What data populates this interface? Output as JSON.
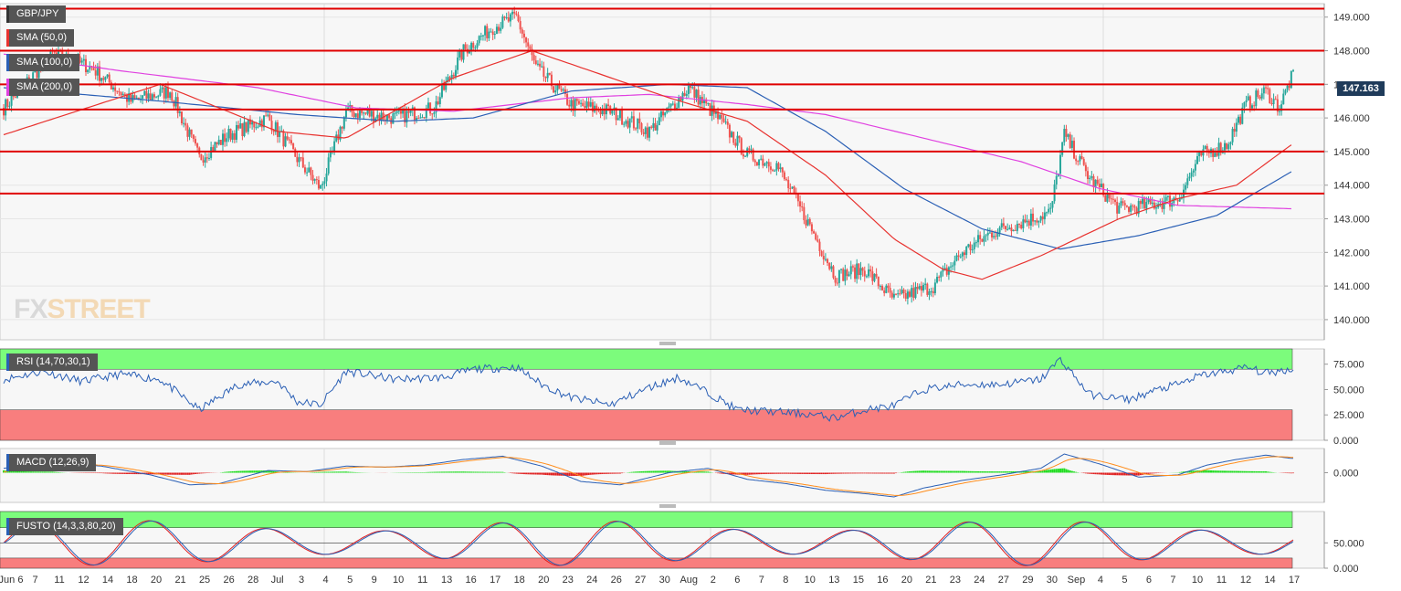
{
  "symbol": "GBP/JPY",
  "indicators": {
    "sma50": "SMA (50,0)",
    "sma100": "SMA (100,0)",
    "sma200": "SMA (200,0)",
    "rsi": "RSI (14,70,30,1)",
    "macd": "MACD (12,26,9)",
    "fusto": "FUSTO (14,3,3,80,20)"
  },
  "watermark": {
    "fx": "FX",
    "street": "STREET"
  },
  "last_price": "147.163",
  "colors": {
    "bull": "#26a69a",
    "bear": "#ef5350",
    "sma50": "#e8322f",
    "sma100": "#2a5fb5",
    "sma200": "#e040e0",
    "level": "#e00000",
    "zone_green": "#7cfc7c",
    "zone_red": "#f87e7e",
    "price_tag": "#1f3b5a"
  },
  "chart_data": [
    {
      "type": "candlestick",
      "title": "GBP/JPY",
      "ylim": [
        139.4,
        149.4
      ],
      "y_ticks": [
        "149.000",
        "148.000",
        "147.000",
        "146.000",
        "145.000",
        "144.000",
        "143.000",
        "142.000",
        "141.000",
        "140.000"
      ],
      "x_ticks": [
        "Jun 6",
        "7",
        "11",
        "12",
        "14",
        "18",
        "20",
        "21",
        "25",
        "26",
        "28",
        "Jul",
        "3",
        "4",
        "5",
        "9",
        "10",
        "11",
        "13",
        "16",
        "17",
        "18",
        "20",
        "23",
        "24",
        "26",
        "27",
        "30",
        "Aug",
        "2",
        "6",
        "7",
        "8",
        "10",
        "13",
        "15",
        "16",
        "20",
        "21",
        "23",
        "24",
        "27",
        "29",
        "30",
        "Sep",
        "4",
        "5",
        "6",
        "7",
        "10",
        "11",
        "12",
        "14",
        "17"
      ],
      "horizontal_levels": [
        149.25,
        148.0,
        147.0,
        146.25,
        145.0,
        143.75
      ],
      "close_waypoints": [
        [
          0,
          146.3
        ],
        [
          25,
          147.9
        ],
        [
          45,
          147.5
        ],
        [
          65,
          146.5
        ],
        [
          85,
          146.8
        ],
        [
          100,
          144.8
        ],
        [
          115,
          145.5
        ],
        [
          135,
          146.0
        ],
        [
          150,
          144.8
        ],
        [
          162,
          143.9
        ],
        [
          175,
          146.2
        ],
        [
          200,
          146.0
        ],
        [
          220,
          146.3
        ],
        [
          235,
          148.0
        ],
        [
          250,
          148.7
        ],
        [
          262,
          149.0
        ],
        [
          272,
          147.5
        ],
        [
          290,
          146.4
        ],
        [
          310,
          146.2
        ],
        [
          330,
          145.6
        ],
        [
          350,
          146.9
        ],
        [
          365,
          146.0
        ],
        [
          380,
          144.9
        ],
        [
          395,
          144.6
        ],
        [
          410,
          143.0
        ],
        [
          425,
          141.3
        ],
        [
          440,
          141.5
        ],
        [
          455,
          140.6
        ],
        [
          475,
          141.0
        ],
        [
          490,
          142.0
        ],
        [
          505,
          142.6
        ],
        [
          520,
          142.9
        ],
        [
          535,
          143.2
        ],
        [
          542,
          145.5
        ],
        [
          555,
          144.2
        ],
        [
          570,
          143.3
        ],
        [
          585,
          143.4
        ],
        [
          600,
          143.6
        ],
        [
          612,
          144.9
        ],
        [
          625,
          145.2
        ],
        [
          635,
          146.4
        ],
        [
          645,
          146.8
        ],
        [
          652,
          146.3
        ],
        [
          658,
          147.2
        ]
      ],
      "sma50_waypoints": [
        [
          0,
          145.5
        ],
        [
          80,
          147.0
        ],
        [
          140,
          145.6
        ],
        [
          175,
          145.4
        ],
        [
          230,
          147.2
        ],
        [
          270,
          148.0
        ],
        [
          300,
          147.4
        ],
        [
          340,
          146.6
        ],
        [
          380,
          145.9
        ],
        [
          420,
          144.3
        ],
        [
          455,
          142.4
        ],
        [
          480,
          141.5
        ],
        [
          500,
          141.2
        ],
        [
          530,
          141.9
        ],
        [
          570,
          143.0
        ],
        [
          600,
          143.6
        ],
        [
          630,
          144.0
        ],
        [
          658,
          145.2
        ]
      ],
      "sma100_waypoints": [
        [
          0,
          146.9
        ],
        [
          80,
          146.5
        ],
        [
          150,
          146.1
        ],
        [
          200,
          145.9
        ],
        [
          240,
          146.0
        ],
        [
          290,
          146.8
        ],
        [
          340,
          147.0
        ],
        [
          380,
          146.9
        ],
        [
          420,
          145.6
        ],
        [
          460,
          143.9
        ],
        [
          500,
          142.7
        ],
        [
          540,
          142.1
        ],
        [
          580,
          142.5
        ],
        [
          620,
          143.1
        ],
        [
          658,
          144.4
        ]
      ],
      "sma200_waypoints": [
        [
          0,
          147.9
        ],
        [
          60,
          147.4
        ],
        [
          130,
          146.9
        ],
        [
          180,
          146.3
        ],
        [
          230,
          146.2
        ],
        [
          290,
          146.6
        ],
        [
          330,
          146.7
        ],
        [
          380,
          146.4
        ],
        [
          420,
          146.1
        ],
        [
          470,
          145.4
        ],
        [
          520,
          144.7
        ],
        [
          560,
          143.9
        ],
        [
          600,
          143.4
        ],
        [
          658,
          143.3
        ]
      ]
    },
    {
      "type": "line",
      "title": "RSI (14,70,30,1)",
      "ylim": [
        0,
        90
      ],
      "y_ticks": [
        "75.000",
        "50.000",
        "25.000",
        "0.000"
      ],
      "overbought": 70,
      "oversold": 30,
      "waypoints": [
        [
          0,
          60
        ],
        [
          20,
          68
        ],
        [
          40,
          58
        ],
        [
          60,
          65
        ],
        [
          80,
          60
        ],
        [
          100,
          30
        ],
        [
          120,
          55
        ],
        [
          140,
          58
        ],
        [
          150,
          38
        ],
        [
          162,
          35
        ],
        [
          175,
          68
        ],
        [
          200,
          60
        ],
        [
          225,
          62
        ],
        [
          240,
          70
        ],
        [
          262,
          72
        ],
        [
          275,
          55
        ],
        [
          290,
          42
        ],
        [
          310,
          35
        ],
        [
          330,
          52
        ],
        [
          345,
          62
        ],
        [
          360,
          47
        ],
        [
          375,
          30
        ],
        [
          395,
          28
        ],
        [
          410,
          26
        ],
        [
          425,
          22
        ],
        [
          440,
          30
        ],
        [
          455,
          34
        ],
        [
          470,
          50
        ],
        [
          490,
          55
        ],
        [
          510,
          55
        ],
        [
          530,
          60
        ],
        [
          540,
          80
        ],
        [
          555,
          45
        ],
        [
          575,
          40
        ],
        [
          590,
          50
        ],
        [
          600,
          55
        ],
        [
          612,
          64
        ],
        [
          625,
          68
        ],
        [
          635,
          72
        ],
        [
          645,
          66
        ],
        [
          658,
          70
        ]
      ]
    },
    {
      "type": "line",
      "title": "MACD (12,26,9)",
      "ylim": [
        -1.35,
        1.1
      ],
      "y_ticks": [
        "0.000"
      ],
      "macd_waypoints": [
        [
          0,
          0.2
        ],
        [
          25,
          0.45
        ],
        [
          50,
          0.3
        ],
        [
          75,
          -0.1
        ],
        [
          95,
          -0.55
        ],
        [
          110,
          -0.5
        ],
        [
          135,
          0.1
        ],
        [
          155,
          0.05
        ],
        [
          175,
          0.3
        ],
        [
          195,
          0.25
        ],
        [
          215,
          0.35
        ],
        [
          235,
          0.6
        ],
        [
          255,
          0.75
        ],
        [
          275,
          0.3
        ],
        [
          295,
          -0.4
        ],
        [
          315,
          -0.55
        ],
        [
          340,
          0.0
        ],
        [
          360,
          0.2
        ],
        [
          380,
          -0.3
        ],
        [
          400,
          -0.5
        ],
        [
          420,
          -0.8
        ],
        [
          440,
          -0.95
        ],
        [
          455,
          -1.1
        ],
        [
          470,
          -0.7
        ],
        [
          490,
          -0.35
        ],
        [
          510,
          -0.1
        ],
        [
          530,
          0.2
        ],
        [
          542,
          0.85
        ],
        [
          560,
          0.4
        ],
        [
          580,
          -0.2
        ],
        [
          600,
          -0.1
        ],
        [
          615,
          0.35
        ],
        [
          630,
          0.6
        ],
        [
          645,
          0.8
        ],
        [
          658,
          0.65
        ]
      ]
    },
    {
      "type": "line",
      "title": "FUSTO (14,3,3,80,20)",
      "ylim": [
        0,
        112
      ],
      "y_ticks": [
        "50.000",
        "0.000"
      ],
      "overbought": 80,
      "oversold": 20
    }
  ]
}
